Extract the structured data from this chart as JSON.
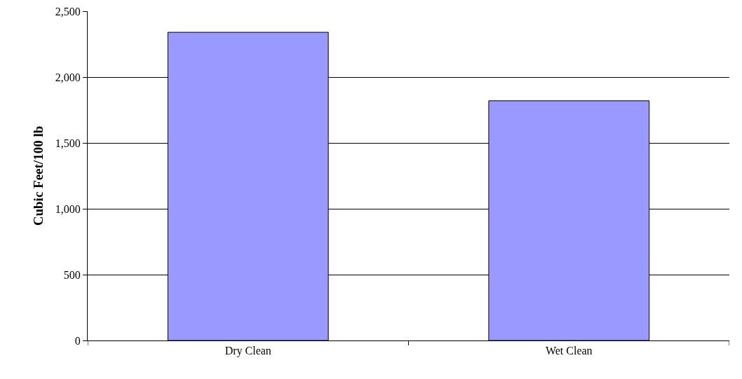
{
  "chart_data": {
    "type": "bar",
    "ylabel": "Cubic Feet/100 lb",
    "categories": [
      "Dry Clean",
      "Wet Clean"
    ],
    "values": [
      2340,
      1820
    ],
    "color": "#9999ff",
    "ylim": [
      0,
      2500
    ],
    "yticks": [
      {
        "value": 0,
        "label": "0"
      },
      {
        "value": 500,
        "label": "500"
      },
      {
        "value": 1000,
        "label": "1,000"
      },
      {
        "value": 1500,
        "label": "1,500"
      },
      {
        "value": 2000,
        "label": "2,000"
      },
      {
        "value": 2500,
        "label": "2,500"
      }
    ],
    "grid": "y"
  }
}
